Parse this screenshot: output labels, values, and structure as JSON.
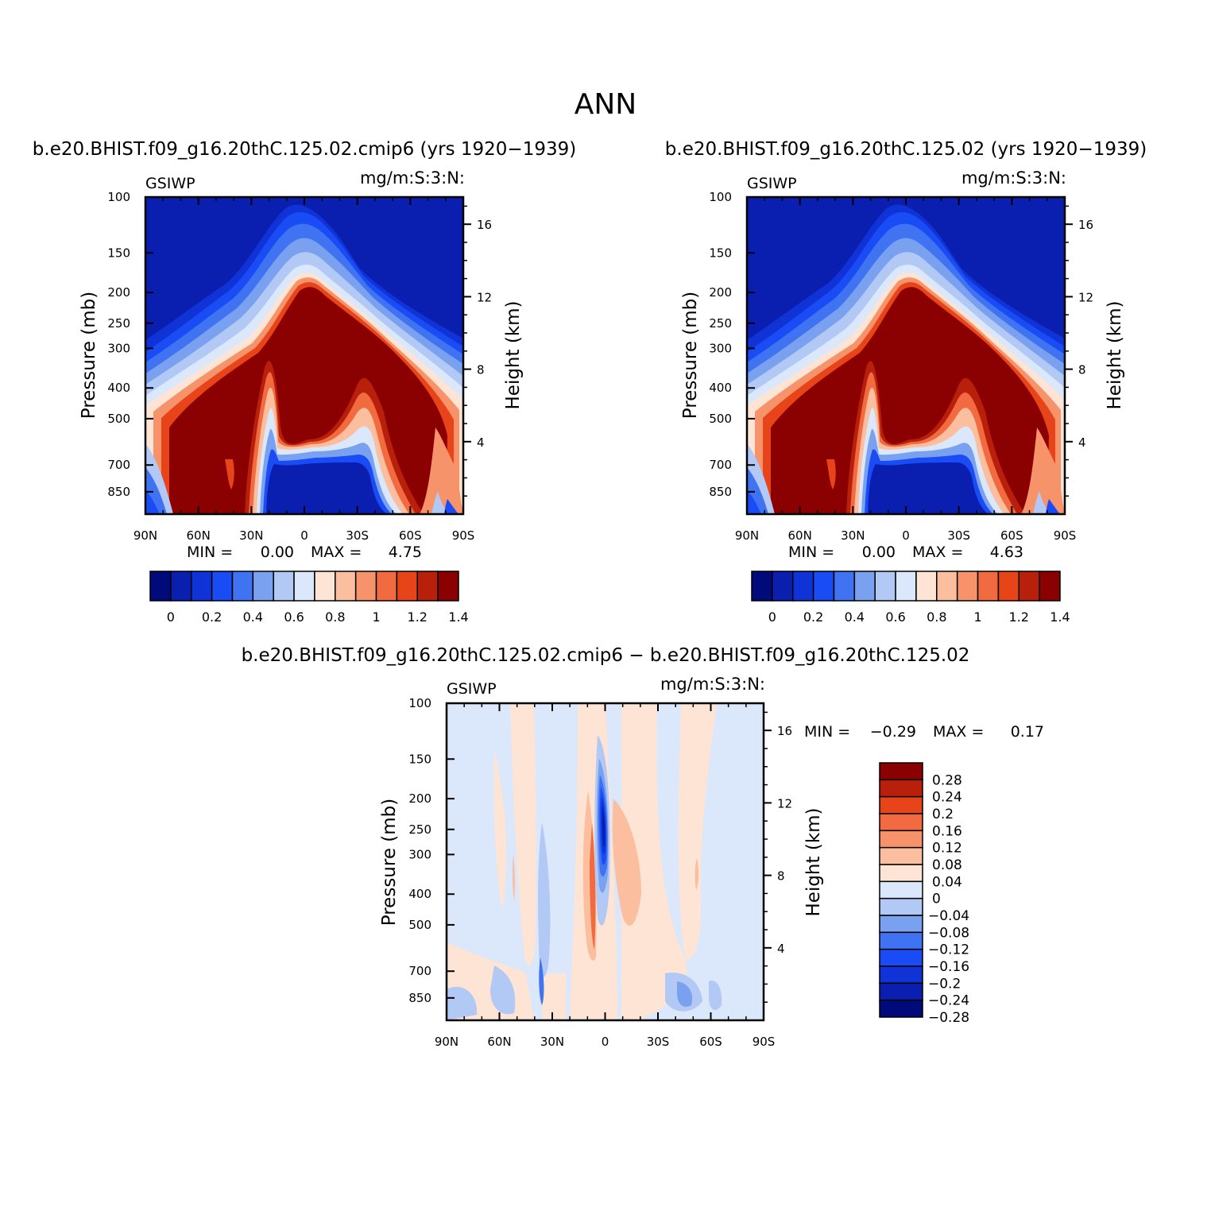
{
  "page": {
    "title": "ANN"
  },
  "palette": {
    "abs": [
      "#000a7a",
      "#0a1faf",
      "#0f33d6",
      "#1a4cf5",
      "#3f73f2",
      "#7aa1f0",
      "#b2c8f5",
      "#dbe7fb",
      "#fde4d4",
      "#fbbfa0",
      "#f7936a",
      "#f26a3f",
      "#e8441a",
      "#b8200c",
      "#8b0000"
    ],
    "diff": [
      "#000a7a",
      "#0a1faf",
      "#0f33d6",
      "#1a4cf5",
      "#3f73f2",
      "#7aa1f0",
      "#b2c8f5",
      "#dbe7fb",
      "#fde4d4",
      "#fbbfa0",
      "#f7936a",
      "#f26a3f",
      "#e8441a",
      "#b8200c",
      "#8b0000"
    ]
  },
  "panels": [
    {
      "id": "case",
      "title": "b.e20.BHIST.f09_g16.20thC.125.02.cmip6 (yrs 1920−1939)",
      "left_label": "GSIWP",
      "right_label": "mg/m:S:3:N:",
      "ylabel": "Pressure (mb)",
      "y2label": "Height (km)",
      "min_label": "MIN =",
      "min_value": "0.00",
      "max_label": "MAX =",
      "max_value": "4.75"
    },
    {
      "id": "control",
      "title": "b.e20.BHIST.f09_g16.20thC.125.02 (yrs 1920−1939)",
      "left_label": "GSIWP",
      "right_label": "mg/m:S:3:N:",
      "ylabel": "Pressure (mb)",
      "y2label": "Height (km)",
      "min_label": "MIN =",
      "min_value": "0.00",
      "max_label": "MAX =",
      "max_value": "4.63"
    },
    {
      "id": "diff",
      "title": "b.e20.BHIST.f09_g16.20thC.125.02.cmip6 − b.e20.BHIST.f09_g16.20thC.125.02",
      "left_label": "GSIWP",
      "right_label": "mg/m:S:3:N:",
      "ylabel": "Pressure (mb)",
      "y2label": "Height (km)",
      "min_label": "MIN =",
      "min_value": "−0.29",
      "max_label": "MAX =",
      "max_value": "0.17"
    }
  ],
  "chart_data": [
    {
      "type": "heatmap",
      "title": "b.e20.BHIST.f09_g16.20thC.125.02.cmip6 (yrs 1920−1939)",
      "variable": "GSIWP",
      "units": "mg/m:S:3:N:",
      "xlabel": "",
      "ylabel": "Pressure (mb)",
      "y2label": "Height (km)",
      "x_ticks": [
        "90N",
        "60N",
        "30N",
        "0",
        "30S",
        "60S",
        "90S"
      ],
      "y_ticks": [
        100,
        150,
        200,
        250,
        300,
        400,
        500,
        700,
        850
      ],
      "y2_ticks": [
        16,
        12,
        8,
        4
      ],
      "colorbar_labels": [
        "0",
        "0.2",
        "0.4",
        "0.6",
        "0.8",
        "1",
        "1.2",
        "1.4"
      ],
      "min": 0.0,
      "max": 4.75
    },
    {
      "type": "heatmap",
      "title": "b.e20.BHIST.f09_g16.20thC.125.02 (yrs 1920−1939)",
      "variable": "GSIWP",
      "units": "mg/m:S:3:N:",
      "xlabel": "",
      "ylabel": "Pressure (mb)",
      "y2label": "Height (km)",
      "x_ticks": [
        "90N",
        "60N",
        "30N",
        "0",
        "30S",
        "60S",
        "90S"
      ],
      "y_ticks": [
        100,
        150,
        200,
        250,
        300,
        400,
        500,
        700,
        850
      ],
      "y2_ticks": [
        16,
        12,
        8,
        4
      ],
      "colorbar_labels": [
        "0",
        "0.2",
        "0.4",
        "0.6",
        "0.8",
        "1",
        "1.2",
        "1.4"
      ],
      "min": 0.0,
      "max": 4.63
    },
    {
      "type": "heatmap",
      "title": "b.e20.BHIST.f09_g16.20thC.125.02.cmip6 − b.e20.BHIST.f09_g16.20thC.125.02",
      "variable": "GSIWP",
      "units": "mg/m:S:3:N:",
      "xlabel": "",
      "ylabel": "Pressure (mb)",
      "y2label": "Height (km)",
      "x_ticks": [
        "90N",
        "60N",
        "30N",
        "0",
        "30S",
        "60S",
        "90S"
      ],
      "y_ticks": [
        100,
        150,
        200,
        250,
        300,
        400,
        500,
        700,
        850
      ],
      "y2_ticks": [
        16,
        12,
        8,
        4
      ],
      "colorbar_labels": [
        "0.28",
        "0.24",
        "0.2",
        "0.16",
        "0.12",
        "0.08",
        "0.04",
        "0",
        "−0.04",
        "−0.08",
        "−0.12",
        "−0.16",
        "−0.2",
        "−0.24",
        "−0.28"
      ],
      "min": -0.29,
      "max": 0.17
    }
  ]
}
